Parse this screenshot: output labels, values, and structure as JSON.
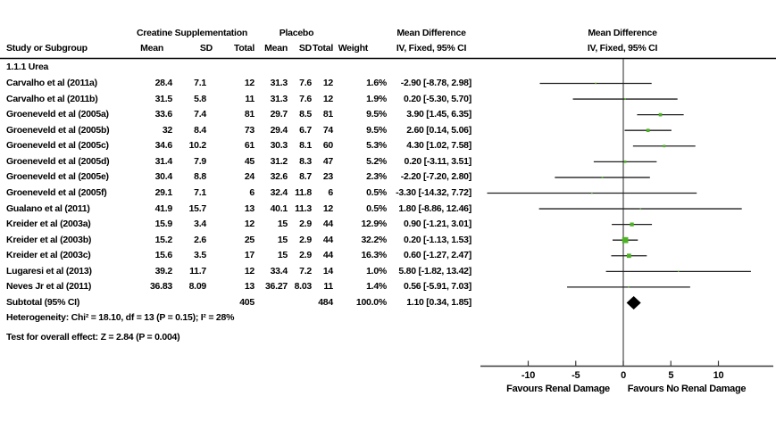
{
  "header": {
    "col_study": "Study or Subgroup",
    "group1": "Creatine Supplementation",
    "group2": "Placebo",
    "col_mean": "Mean",
    "col_sd": "SD",
    "col_total": "Total",
    "col_weight": "Weight",
    "md_title": "Mean Difference",
    "md_subtitle": "IV, Fixed, 95% CI"
  },
  "chart_data": {
    "type": "forest",
    "effect_measure": "Mean Difference IV, Fixed, 95% CI",
    "subgroup_label": "1.1.1 Urea",
    "marker_color": "#4db324",
    "ci_line_color": "#1f1f1f",
    "diamond_color": "#000000",
    "studies": [
      {
        "name": "Carvalho et al (2011a)",
        "c_mean": "28.4",
        "c_sd": "7.1",
        "c_total": "12",
        "p_mean": "31.3",
        "p_sd": "7.6",
        "p_total": "12",
        "weight": "1.6%",
        "ci_text": "-2.90 [-8.78, 2.98]",
        "est": -2.9,
        "lo": -8.78,
        "hi": 2.98,
        "weight_pct": 1.6
      },
      {
        "name": "Carvalho et al (2011b)",
        "c_mean": "31.5",
        "c_sd": "5.8",
        "c_total": "11",
        "p_mean": "31.3",
        "p_sd": "7.6",
        "p_total": "12",
        "weight": "1.9%",
        "ci_text": "0.20 [-5.30, 5.70]",
        "est": 0.2,
        "lo": -5.3,
        "hi": 5.7,
        "weight_pct": 1.9
      },
      {
        "name": "Groeneveld et al (2005a)",
        "c_mean": "33.6",
        "c_sd": "7.4",
        "c_total": "81",
        "p_mean": "29.7",
        "p_sd": "8.5",
        "p_total": "81",
        "weight": "9.5%",
        "ci_text": "3.90 [1.45, 6.35]",
        "est": 3.9,
        "lo": 1.45,
        "hi": 6.35,
        "weight_pct": 9.5
      },
      {
        "name": "Groeneveld et al (2005b)",
        "c_mean": "32",
        "c_sd": "8.4",
        "c_total": "73",
        "p_mean": "29.4",
        "p_sd": "6.7",
        "p_total": "74",
        "weight": "9.5%",
        "ci_text": "2.60 [0.14, 5.06]",
        "est": 2.6,
        "lo": 0.14,
        "hi": 5.06,
        "weight_pct": 9.5
      },
      {
        "name": "Groeneveld et al (2005c)",
        "c_mean": "34.6",
        "c_sd": "10.2",
        "c_total": "61",
        "p_mean": "30.3",
        "p_sd": "8.1",
        "p_total": "60",
        "weight": "5.3%",
        "ci_text": "4.30 [1.02, 7.58]",
        "est": 4.3,
        "lo": 1.02,
        "hi": 7.58,
        "weight_pct": 5.3
      },
      {
        "name": "Groeneveld et al (2005d)",
        "c_mean": "31.4",
        "c_sd": "7.9",
        "c_total": "45",
        "p_mean": "31.2",
        "p_sd": "8.3",
        "p_total": "47",
        "weight": "5.2%",
        "ci_text": "0.20 [-3.11, 3.51]",
        "est": 0.2,
        "lo": -3.11,
        "hi": 3.51,
        "weight_pct": 5.2
      },
      {
        "name": "Groeneveld et al (2005e)",
        "c_mean": "30.4",
        "c_sd": "8.8",
        "c_total": "24",
        "p_mean": "32.6",
        "p_sd": "8.7",
        "p_total": "23",
        "weight": "2.3%",
        "ci_text": "-2.20 [-7.20, 2.80]",
        "est": -2.2,
        "lo": -7.2,
        "hi": 2.8,
        "weight_pct": 2.3
      },
      {
        "name": "Groeneveld et al (2005f)",
        "c_mean": "29.1",
        "c_sd": "7.1",
        "c_total": "6",
        "p_mean": "32.4",
        "p_sd": "11.8",
        "p_total": "6",
        "weight": "0.5%",
        "ci_text": "-3.30 [-14.32, 7.72]",
        "est": -3.3,
        "lo": -14.32,
        "hi": 7.72,
        "weight_pct": 0.5
      },
      {
        "name": "Gualano et al (2011)",
        "c_mean": "41.9",
        "c_sd": "15.7",
        "c_total": "13",
        "p_mean": "40.1",
        "p_sd": "11.3",
        "p_total": "12",
        "weight": "0.5%",
        "ci_text": "1.80 [-8.86, 12.46]",
        "est": 1.8,
        "lo": -8.86,
        "hi": 12.46,
        "weight_pct": 0.5
      },
      {
        "name": "Kreider et al (2003a)",
        "c_mean": "15.9",
        "c_sd": "3.4",
        "c_total": "12",
        "p_mean": "15",
        "p_sd": "2.9",
        "p_total": "44",
        "weight": "12.9%",
        "ci_text": "0.90 [-1.21, 3.01]",
        "est": 0.9,
        "lo": -1.21,
        "hi": 3.01,
        "weight_pct": 12.9
      },
      {
        "name": "Kreider et al (2003b)",
        "c_mean": "15.2",
        "c_sd": "2.6",
        "c_total": "25",
        "p_mean": "15",
        "p_sd": "2.9",
        "p_total": "44",
        "weight": "32.2%",
        "ci_text": "0.20 [-1.13, 1.53]",
        "est": 0.2,
        "lo": -1.13,
        "hi": 1.53,
        "weight_pct": 32.2
      },
      {
        "name": "Kreider et al (2003c)",
        "c_mean": "15.6",
        "c_sd": "3.5",
        "c_total": "17",
        "p_mean": "15",
        "p_sd": "2.9",
        "p_total": "44",
        "weight": "16.3%",
        "ci_text": "0.60 [-1.27, 2.47]",
        "est": 0.6,
        "lo": -1.27,
        "hi": 2.47,
        "weight_pct": 16.3
      },
      {
        "name": "Lugaresi et al (2013)",
        "c_mean": "39.2",
        "c_sd": "11.7",
        "c_total": "12",
        "p_mean": "33.4",
        "p_sd": "7.2",
        "p_total": "14",
        "weight": "1.0%",
        "ci_text": "5.80 [-1.82, 13.42]",
        "est": 5.8,
        "lo": -1.82,
        "hi": 13.42,
        "weight_pct": 1.0
      },
      {
        "name": "Neves Jr et al (2011)",
        "c_mean": "36.83",
        "c_sd": "8.09",
        "c_total": "13",
        "p_mean": "36.27",
        "p_sd": "8.03",
        "p_total": "11",
        "weight": "1.4%",
        "ci_text": "0.56 [-5.91, 7.03]",
        "est": 0.56,
        "lo": -5.91,
        "hi": 7.03,
        "weight_pct": 1.4
      }
    ],
    "subtotal": {
      "label": "Subtotal (95% CI)",
      "c_total": "405",
      "p_total": "484",
      "weight": "100.0%",
      "ci_text": "1.10 [0.34, 1.85]",
      "est": 1.1,
      "lo": 0.34,
      "hi": 1.85
    },
    "heterogeneity": "Heterogeneity: Chi² = 18.10, df = 13 (P = 0.15); I² = 28%",
    "overall_effect": "Test for overall effect: Z = 2.84 (P = 0.004)",
    "axis": {
      "ticks": [
        -10,
        -5,
        0,
        5,
        10
      ],
      "xmin": -15,
      "xmax": 15.8,
      "left_label": "Favours Renal Damage",
      "right_label": "Favours No Renal Damage"
    }
  }
}
